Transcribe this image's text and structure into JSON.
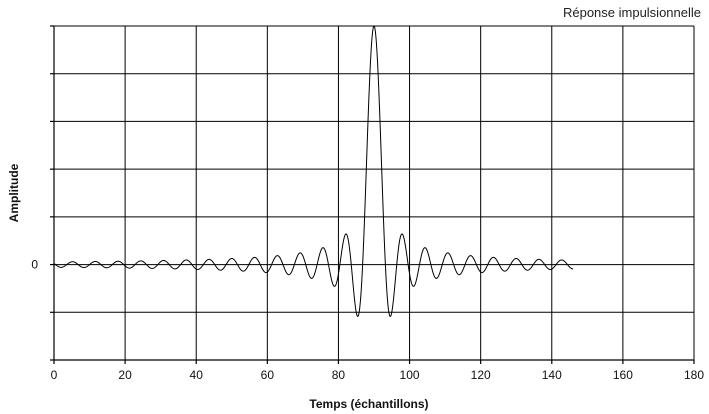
{
  "chart_data": {
    "type": "line",
    "title": "Réponse impulsionnelle",
    "xlabel": "Temps (échantillons)",
    "ylabel": "Amplitude",
    "xlim": [
      0,
      180
    ],
    "ylim": [
      -0.4,
      1.0
    ],
    "xticks": [
      0,
      20,
      40,
      60,
      80,
      100,
      120,
      140,
      160,
      180
    ],
    "xtick_labels": [
      "0",
      "20",
      "40",
      "60",
      "80",
      "100",
      "120",
      "140",
      "160",
      "180"
    ],
    "yticks": [
      -0.4,
      -0.2,
      0,
      0.2,
      0.4,
      0.6,
      0.8,
      1.0
    ],
    "ytick_labels": [
      "",
      "",
      "0",
      "",
      "",
      "",
      "",
      ""
    ],
    "grid": true,
    "series": [
      {
        "color": "#000000",
        "peak_at": 90,
        "x_range": [
          0,
          146
        ],
        "x": [
          0,
          146
        ],
        "y": [
          0,
          0
        ]
      }
    ]
  }
}
